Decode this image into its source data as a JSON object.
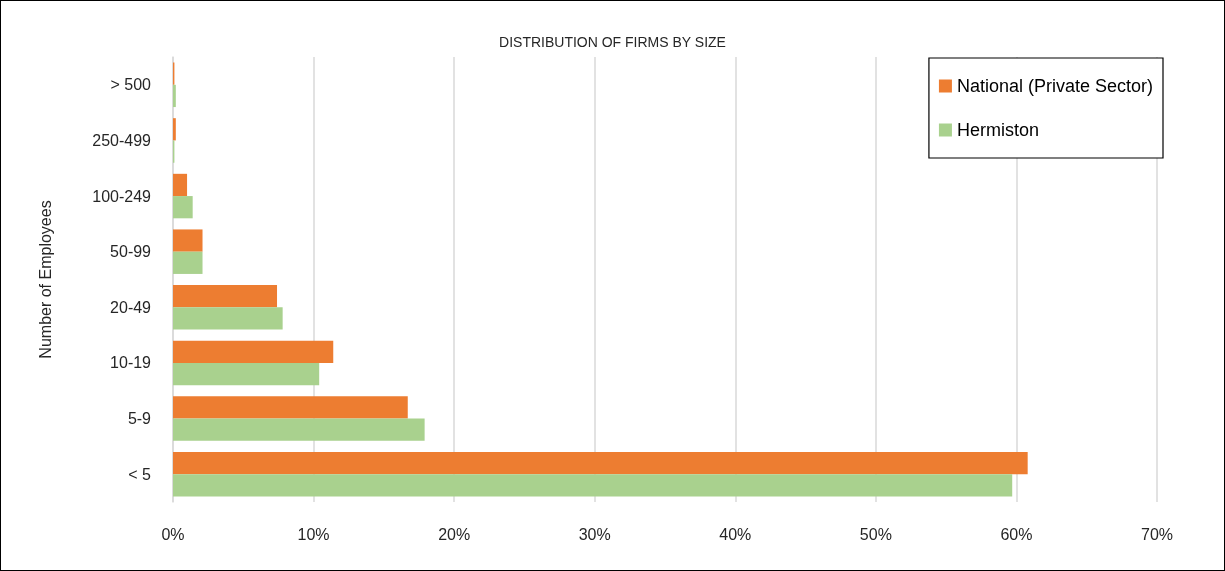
{
  "chart_data": {
    "type": "bar",
    "orientation": "horizontal",
    "title": "DISTRIBUTION OF FIRMS BY SIZE",
    "ylabel": "Number of Employees",
    "categories": [
      "> 500",
      "250-499",
      "100-249",
      "50-99",
      "20-49",
      "10-19",
      "5-9",
      "< 5"
    ],
    "series": [
      {
        "name": "National (Private Sector)",
        "color": "#ed7d31",
        "values": [
          0.1,
          0.2,
          1.0,
          2.1,
          7.4,
          11.4,
          16.7,
          60.8
        ]
      },
      {
        "name": "Hermiston",
        "color": "#a9d18e",
        "values": [
          0.2,
          0.1,
          1.4,
          2.1,
          7.8,
          10.4,
          17.9,
          59.7
        ]
      }
    ],
    "xlim": [
      0,
      70
    ],
    "xticks": [
      {
        "value": 0,
        "label": "0%"
      },
      {
        "value": 10,
        "label": "10%"
      },
      {
        "value": 20,
        "label": "20%"
      },
      {
        "value": 30,
        "label": "30%"
      },
      {
        "value": 40,
        "label": "40%"
      },
      {
        "value": 50,
        "label": "50%"
      },
      {
        "value": 60,
        "label": "60%"
      },
      {
        "value": 70,
        "label": "70%"
      }
    ],
    "grid": "x",
    "legend": "top right"
  }
}
